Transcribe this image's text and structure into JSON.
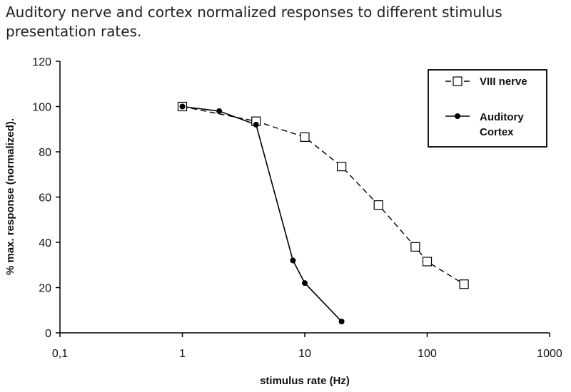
{
  "header": {
    "title_line1": "Auditory nerve and cortex normalized responses to different stimulus",
    "title_line2": "presentation rates."
  },
  "chart_data": {
    "type": "line",
    "title": "Auditory nerve and cortex normalized responses to different stimulus presentation rates.",
    "xlabel": "stimulus rate (Hz)",
    "ylabel": "% max. response (normalized).",
    "xscale": "log",
    "xlim": [
      0.1,
      1000
    ],
    "ylim": [
      0,
      120
    ],
    "x_ticks": [
      "0,1",
      "1",
      "10",
      "100",
      "1000"
    ],
    "y_ticks": [
      "0",
      "20",
      "40",
      "60",
      "80",
      "100",
      "120"
    ],
    "grid": false,
    "legend_position": "top-right",
    "series": [
      {
        "name": "VIII nerve",
        "marker": "open-square",
        "line": "dashed",
        "color": "#000000",
        "points": [
          {
            "x": 1,
            "y": 100
          },
          {
            "x": 4,
            "y": 93.5
          },
          {
            "x": 10,
            "y": 86.5
          },
          {
            "x": 20,
            "y": 73.5
          },
          {
            "x": 40,
            "y": 56.5
          },
          {
            "x": 80,
            "y": 38
          },
          {
            "x": 100,
            "y": 31.5
          },
          {
            "x": 200,
            "y": 21.5
          }
        ]
      },
      {
        "name_line1": "Auditory",
        "name_line2": "Cortex",
        "marker": "filled-circle",
        "line": "solid",
        "color": "#000000",
        "points": [
          {
            "x": 1,
            "y": 100
          },
          {
            "x": 2,
            "y": 98
          },
          {
            "x": 4,
            "y": 92
          },
          {
            "x": 8,
            "y": 32
          },
          {
            "x": 10,
            "y": 22
          },
          {
            "x": 20,
            "y": 5
          }
        ]
      }
    ]
  }
}
